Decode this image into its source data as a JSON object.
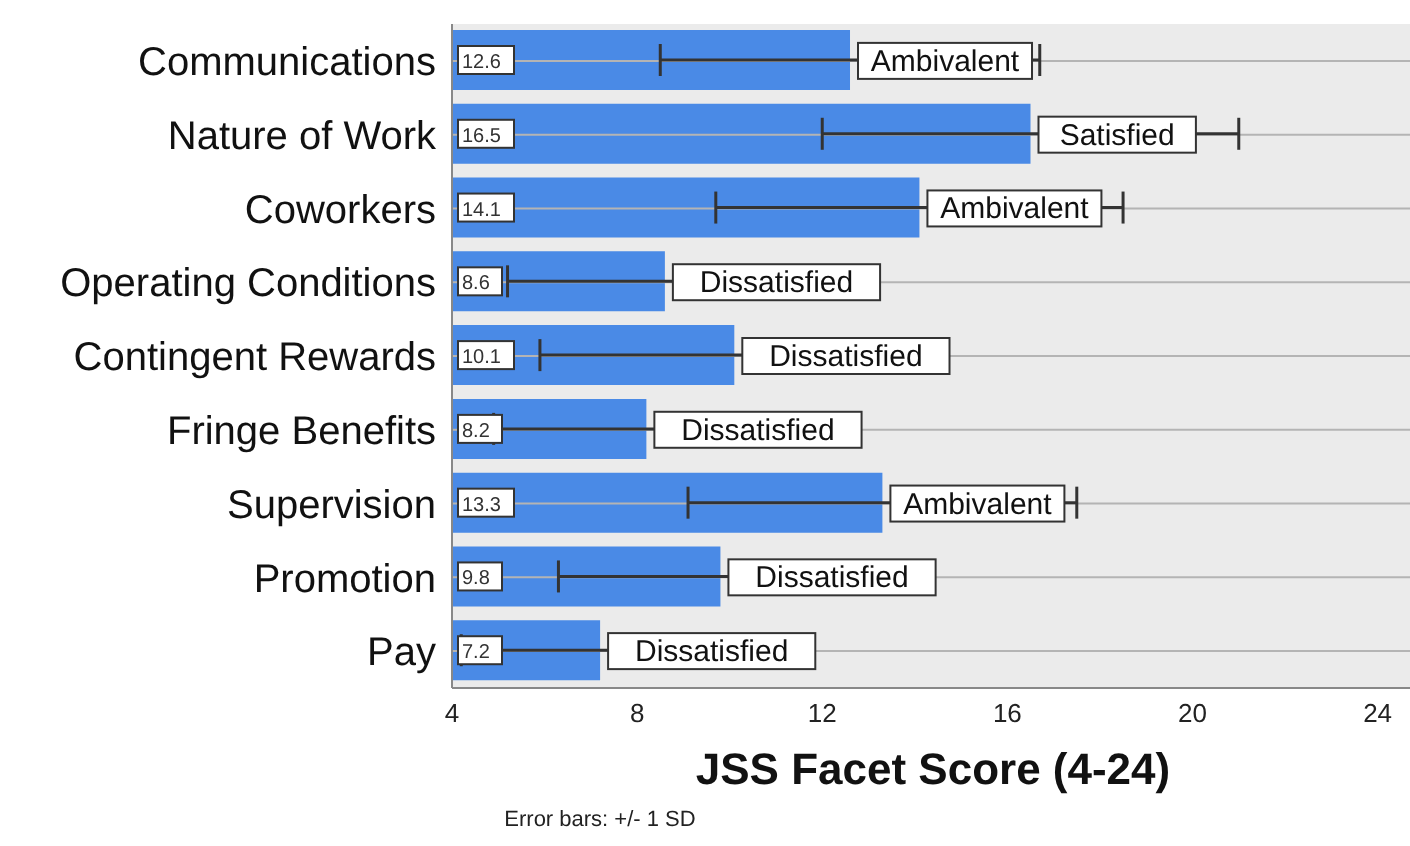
{
  "chart_data": {
    "type": "bar",
    "orientation": "horizontal",
    "xlabel": "JSS Facet Score (4-24)",
    "categories": [
      "Communications",
      "Nature of Work",
      "Coworkers",
      "Operating Conditions",
      "Contingent Rewards",
      "Fringe Benefits",
      "Supervision",
      "Promotion",
      "Pay"
    ],
    "values": [
      12.6,
      16.5,
      14.1,
      8.6,
      10.1,
      8.2,
      13.3,
      9.8,
      7.2
    ],
    "errors": [
      4.1,
      4.5,
      4.4,
      3.4,
      4.2,
      3.3,
      4.2,
      3.5,
      3.0
    ],
    "color": "#4a8ae6",
    "data_labels": true,
    "xlim": [
      4,
      24.7
    ],
    "xticks": [
      4,
      8,
      12,
      16,
      20,
      24
    ],
    "grid": "y",
    "annotations": [
      {
        "text": "Ambivalent",
        "x": 12.6,
        "y": "Communications"
      },
      {
        "text": "Satisfied",
        "x": 16.5,
        "y": "Nature of Work"
      },
      {
        "text": "Ambivalent",
        "x": 14.1,
        "y": "Coworkers"
      },
      {
        "text": "Dissatisfied",
        "x": 8.6,
        "y": "Operating Conditions"
      },
      {
        "text": "Dissatisfied",
        "x": 10.1,
        "y": "Contingent Rewards"
      },
      {
        "text": "Dissatisfied",
        "x": 8.2,
        "y": "Fringe Benefits"
      },
      {
        "text": "Ambivalent",
        "x": 13.3,
        "y": "Supervision"
      },
      {
        "text": "Dissatisfied",
        "x": 9.8,
        "y": "Promotion"
      },
      {
        "text": "Dissatisfied",
        "x": 7.2,
        "y": "Pay"
      },
      "Error bars: +/- 1 SD"
    ]
  }
}
